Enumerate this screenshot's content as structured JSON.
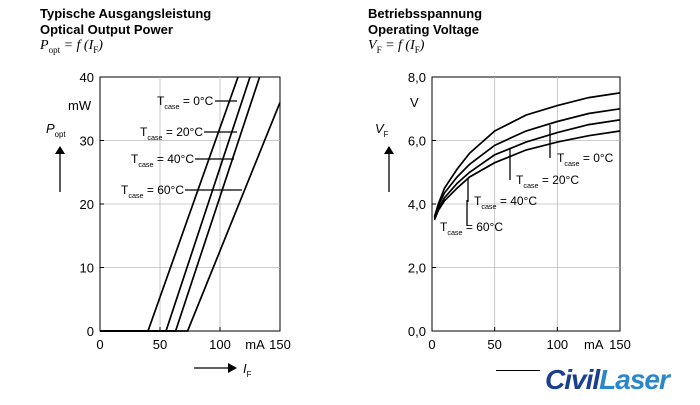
{
  "left_header": {
    "title_de": "Typische Ausgangsleistung",
    "title_en": "Optical Output Power",
    "formula_main": "P",
    "formula_sub": "opt",
    "formula_rest": " = f (I",
    "formula_sub2": "F",
    "formula_end": ")"
  },
  "right_header": {
    "title_de": "Betriebsspannung",
    "title_en": "Operating Voltage",
    "formula_main": "V",
    "formula_sub": "F",
    "formula_rest": " = f (I",
    "formula_sub2": "F",
    "formula_end": ")"
  },
  "logo": {
    "part1": "Civil",
    "part2": "Laser"
  },
  "chart_data": [
    {
      "type": "line",
      "xlim": [
        0,
        150
      ],
      "ylim": [
        0,
        40
      ],
      "x_ticks": [
        "0",
        "50",
        "100",
        "150"
      ],
      "y_ticks": [
        "0",
        "10",
        "20",
        "30",
        "40"
      ],
      "x_unit": "mA",
      "y_unit": "mW",
      "xlabel": "I",
      "xlabel_sub": "F",
      "ylabel": "P",
      "ylabel_sub": "opt",
      "series": [
        {
          "name": "T_case = 0°C",
          "label_prefix": "T",
          "label_sub": "case",
          "label_rest": " = 0°C",
          "x": [
            0,
            40,
            115
          ],
          "y": [
            0,
            0,
            40
          ]
        },
        {
          "name": "T_case = 20°C",
          "label_prefix": "T",
          "label_sub": "case",
          "label_rest": " = 20°C",
          "x": [
            0,
            55,
            125
          ],
          "y": [
            0,
            0,
            40
          ]
        },
        {
          "name": "T_case = 40°C",
          "label_prefix": "T",
          "label_sub": "case",
          "label_rest": " = 40°C",
          "x": [
            0,
            63,
            133
          ],
          "y": [
            0,
            0,
            40
          ]
        },
        {
          "name": "T_case = 60°C",
          "label_prefix": "T",
          "label_sub": "case",
          "label_rest": " = 60°C",
          "x": [
            0,
            73,
            150
          ],
          "y": [
            0,
            0,
            36
          ]
        }
      ]
    },
    {
      "type": "line",
      "xlim": [
        0,
        150
      ],
      "ylim": [
        0,
        8
      ],
      "x_ticks": [
        "0",
        "50",
        "100",
        "150"
      ],
      "y_ticks": [
        "0,0",
        "2,0",
        "4,0",
        "6,0",
        "8,0"
      ],
      "x_unit": "mA",
      "y_unit": "V",
      "xlabel": "",
      "ylabel": "V",
      "ylabel_sub": "F",
      "series": [
        {
          "name": "T_case = 0°C",
          "label_prefix": "T",
          "label_sub": "case",
          "label_rest": " = 0°C",
          "x": [
            2,
            5,
            10,
            20,
            30,
            50,
            75,
            100,
            125,
            150
          ],
          "y": [
            3.6,
            4.0,
            4.5,
            5.1,
            5.6,
            6.3,
            6.8,
            7.1,
            7.35,
            7.5
          ]
        },
        {
          "name": "T_case = 20°C",
          "label_prefix": "T",
          "label_sub": "case",
          "label_rest": " = 20°C",
          "x": [
            2,
            5,
            10,
            20,
            30,
            50,
            75,
            100,
            125,
            150
          ],
          "y": [
            3.6,
            3.95,
            4.35,
            4.85,
            5.25,
            5.85,
            6.3,
            6.6,
            6.85,
            7.0
          ]
        },
        {
          "name": "T_case = 40°C",
          "label_prefix": "T",
          "label_sub": "case",
          "label_rest": " = 40°C",
          "x": [
            2,
            5,
            10,
            20,
            30,
            50,
            75,
            100,
            125,
            150
          ],
          "y": [
            3.55,
            3.85,
            4.2,
            4.65,
            5.0,
            5.55,
            5.95,
            6.25,
            6.5,
            6.65
          ]
        },
        {
          "name": "T_case = 60°C",
          "label_prefix": "T",
          "label_sub": "case",
          "label_rest": " = 60°C",
          "x": [
            2,
            5,
            10,
            20,
            30,
            50,
            75,
            100,
            125,
            150
          ],
          "y": [
            3.5,
            3.8,
            4.1,
            4.5,
            4.85,
            5.3,
            5.7,
            5.95,
            6.15,
            6.3
          ]
        }
      ]
    }
  ]
}
